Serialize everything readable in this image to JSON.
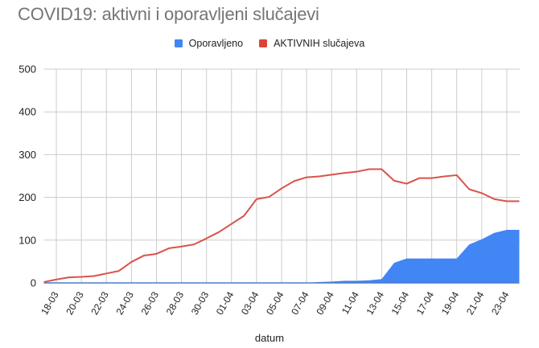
{
  "title": "COVID19: aktivni i oporavljeni slučajevi",
  "legend": [
    {
      "label": "Oporavljeno",
      "color": "#4285f4"
    },
    {
      "label": "AKTIVNIH slučajeva",
      "color": "#db4437"
    }
  ],
  "colors": {
    "recovered": "#4285f4",
    "active": "#d9534a",
    "grid": "#cccccc",
    "baseline": "#4a7cc7"
  },
  "chart_data": {
    "type": "area+line",
    "title": "COVID19: aktivni i oporavljeni slučajevi",
    "xlabel": "datum",
    "ylabel": "",
    "ylim": [
      0,
      500
    ],
    "yticks": [
      0,
      100,
      200,
      300,
      400,
      500
    ],
    "grid": true,
    "legend_position": "top",
    "x": [
      "17-03",
      "18-03",
      "19-03",
      "20-03",
      "21-03",
      "22-03",
      "23-03",
      "24-03",
      "25-03",
      "26-03",
      "27-03",
      "28-03",
      "29-03",
      "30-03",
      "31-03",
      "01-04",
      "02-04",
      "03-04",
      "04-04",
      "05-04",
      "06-04",
      "07-04",
      "08-04",
      "09-04",
      "10-04",
      "11-04",
      "12-04",
      "13-04",
      "14-04",
      "15-04",
      "16-04",
      "17-04",
      "18-04",
      "19-04",
      "20-04",
      "21-04",
      "22-04",
      "23-04",
      "24-04"
    ],
    "xtick_labels": [
      "18-03",
      "20-03",
      "22-03",
      "24-03",
      "26-03",
      "28-03",
      "30-03",
      "01-04",
      "03-04",
      "05-04",
      "07-04",
      "09-04",
      "11-04",
      "13-04",
      "15-04",
      "17-04",
      "19-04",
      "21-04",
      "23-04"
    ],
    "series": [
      {
        "name": "Oporavljeno",
        "type": "area",
        "color": "#4285f4",
        "values": [
          0,
          0,
          0,
          0,
          0,
          0,
          0,
          0,
          0,
          0,
          0,
          0,
          0,
          0,
          0,
          0,
          0,
          0,
          0,
          0,
          0,
          0,
          2,
          3,
          5,
          5,
          6,
          9,
          47,
          57,
          57,
          57,
          57,
          57,
          90,
          102,
          117,
          124,
          124
        ]
      },
      {
        "name": "AKTIVNIH slučajeva",
        "type": "line",
        "color": "#db4437",
        "values": [
          2,
          8,
          13,
          14,
          16,
          22,
          28,
          49,
          64,
          68,
          81,
          85,
          90,
          104,
          119,
          138,
          157,
          196,
          201,
          221,
          238,
          247,
          249,
          253,
          257,
          260,
          266,
          266,
          239,
          232,
          245,
          245,
          249,
          252,
          219,
          210,
          196,
          191,
          191
        ]
      }
    ]
  }
}
